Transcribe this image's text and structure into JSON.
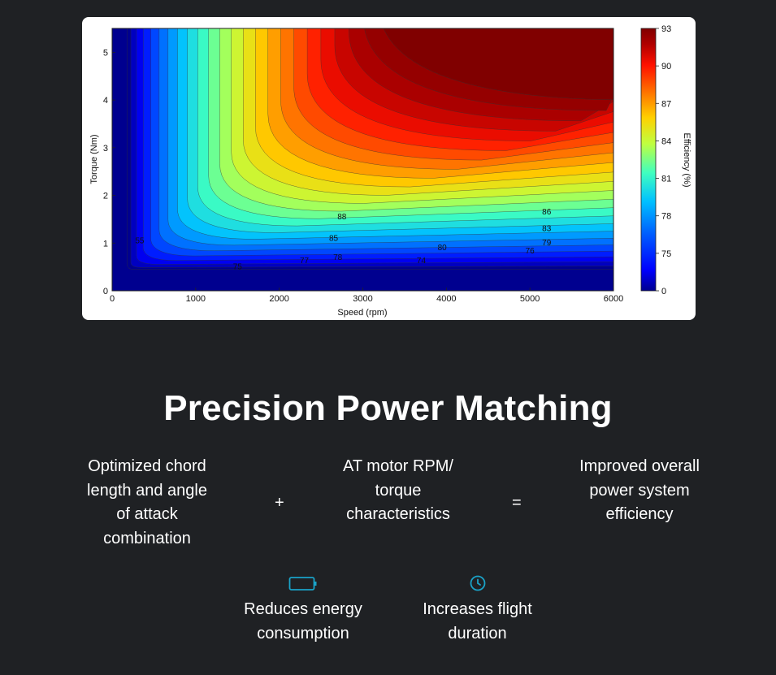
{
  "chart_data": {
    "type": "heatmap",
    "subtype": "filled-contour",
    "title": "",
    "xlabel": "Speed  (rpm)",
    "ylabel": "Torque  (Nm)",
    "xlim": [
      0,
      6000
    ],
    "ylim": [
      0,
      5.5
    ],
    "xticks": [
      "0",
      "1000",
      "2000",
      "3000",
      "4000",
      "5000",
      "6000"
    ],
    "yticks": [
      "0",
      "1",
      "2",
      "3",
      "4",
      "5"
    ],
    "colorbar": {
      "label": "Efficiency (%)",
      "ticks": [
        "0",
        "75",
        "78",
        "81",
        "84",
        "87",
        "90",
        "93"
      ],
      "colors": [
        "#00008f",
        "#0000ff",
        "#0060ff",
        "#00c0ff",
        "#40ffbf",
        "#bfff40",
        "#ffd000",
        "#ff7000",
        "#ff1000",
        "#b00000",
        "#800000"
      ]
    },
    "peak_efficiency_region": {
      "speed_rpm": [
        3000,
        6000
      ],
      "torque_nm": [
        4.0,
        5.5
      ],
      "efficiency": 93
    },
    "contour_labels": [
      {
        "text": "88",
        "speed": 2750,
        "torque": 1.5
      },
      {
        "text": "86",
        "speed": 5200,
        "torque": 1.6
      },
      {
        "text": "85",
        "speed": 2650,
        "torque": 1.05
      },
      {
        "text": "83",
        "speed": 5200,
        "torque": 1.25
      },
      {
        "text": "80",
        "speed": 3950,
        "torque": 0.85
      },
      {
        "text": "79",
        "speed": 5200,
        "torque": 0.95
      },
      {
        "text": "78",
        "speed": 2700,
        "torque": 0.65
      },
      {
        "text": "77",
        "speed": 2300,
        "torque": 0.58
      },
      {
        "text": "76",
        "speed": 5000,
        "torque": 0.78
      },
      {
        "text": "75",
        "speed": 1500,
        "torque": 0.45
      },
      {
        "text": "74",
        "speed": 3700,
        "torque": 0.58
      },
      {
        "text": "55",
        "speed": 330,
        "torque": 1.0
      }
    ]
  },
  "heading": "Precision Power Matching",
  "formula": {
    "term1": "Optimized chord length and angle of attack combination",
    "plus": "+",
    "term2": "AT motor RPM/ torque characteristics",
    "equals": "=",
    "term3": "Improved overall power system efficiency"
  },
  "benefits": [
    {
      "icon": "battery-icon",
      "label": "Reduces energy consumption",
      "color": "#1aa3c8"
    },
    {
      "icon": "clock-icon",
      "label": "Increases flight duration",
      "color": "#1aa3c8"
    }
  ]
}
